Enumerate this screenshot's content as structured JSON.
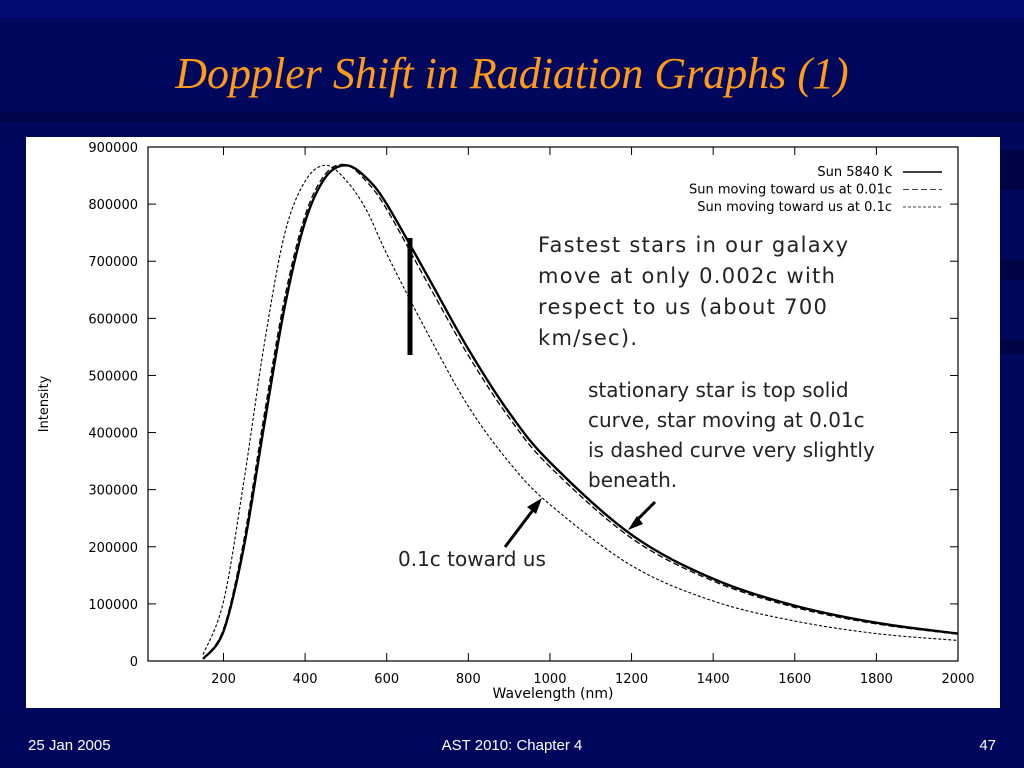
{
  "title": "Doppler Shift in Radiation Graphs (1)",
  "chart_data": {
    "type": "line",
    "xlabel": "Wavelength (nm)",
    "ylabel": "Intensity",
    "x": [
      150,
      200,
      250,
      300,
      350,
      400,
      450,
      500,
      550,
      600,
      700,
      800,
      900,
      1000,
      1200,
      1400,
      1600,
      1800,
      2000
    ],
    "series": [
      {
        "name": "Sun 5840 K",
        "color": "#000000",
        "style": "solid",
        "values": [
          3600,
          51900,
          200000,
          414000,
          620000,
          769000,
          847000,
          868000,
          846000,
          800000,
          674000,
          546000,
          435000,
          348000,
          221000,
          144000,
          97000,
          67000,
          48000
        ]
      },
      {
        "name": "Sun moving toward us at 0.01c",
        "color": "#000000",
        "style": "dashed",
        "values": [
          4000,
          56000,
          212000,
          432000,
          636000,
          780000,
          853000,
          869000,
          840000,
          791000,
          662000,
          535000,
          426000,
          340000,
          215000,
          140000,
          94000,
          65000,
          47000
        ]
      },
      {
        "name": "Sun moving toward us at 0.1c",
        "color": "#000000",
        "style": "dotted",
        "values": [
          11300,
          104000,
          315000,
          555000,
          748000,
          840000,
          868000,
          842000,
          790000,
          713000,
          574000,
          446000,
          348000,
          274000,
          167000,
          105000,
          70000,
          48000,
          36000
        ]
      }
    ],
    "xlim": [
      15,
      2000
    ],
    "xticks": [
      200,
      400,
      600,
      800,
      1000,
      1200,
      1400,
      1600,
      1800,
      2000
    ],
    "ylim": [
      0,
      900000
    ],
    "yticks": [
      0,
      100000,
      200000,
      300000,
      400000,
      500000,
      600000,
      700000,
      800000,
      900000
    ],
    "legend": "upper right",
    "annotations": [
      {
        "lines": [
          "Fastest stars in our galaxy",
          "move at only  0.002c with",
          "respect to us (about 700",
          "km/sec)."
        ]
      },
      {
        "lines": [
          "stationary star is top solid",
          "curve, star moving at 0.01c",
          "is dashed curve very slightly",
          "beneath."
        ]
      },
      {
        "lines": [
          "0.1c toward us"
        ]
      }
    ]
  },
  "footer": {
    "date": "25 Jan 2005",
    "course": "AST 2010: Chapter 4",
    "page": "47"
  }
}
